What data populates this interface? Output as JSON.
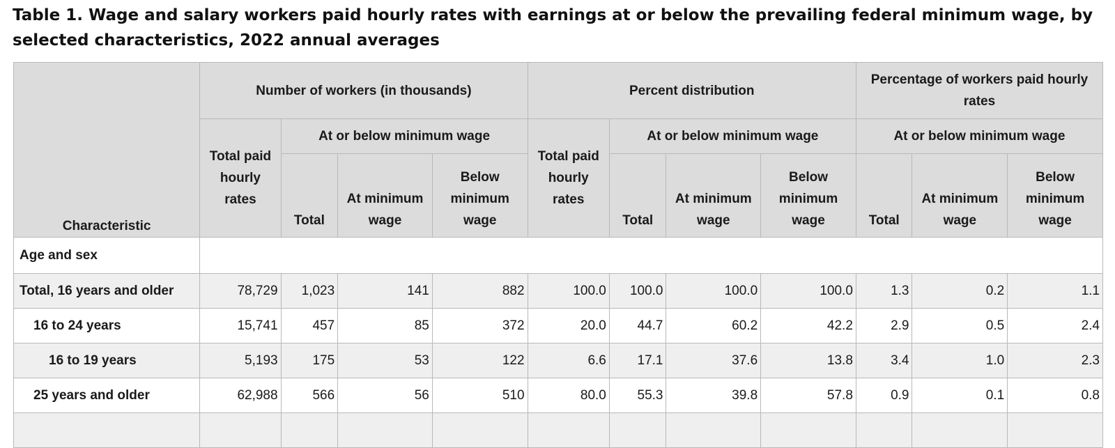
{
  "title": "Table 1. Wage and salary workers paid hourly rates with earnings at or below the prevailing federal minimum wage, by selected characteristics, 2022 annual averages",
  "headers": {
    "characteristic": "Characteristic",
    "group_number": "Number of workers (in thousands)",
    "group_percent": "Percent distribution",
    "group_percentage": "Percentage of workers paid hourly rates",
    "at_or_below_1": "At or below minimum wage",
    "at_or_below_2": "At or below minimum wage",
    "at_or_below_3": "At or below minimum wage",
    "total_paid_1": "Total paid hourly rates",
    "total_paid_2": "Total paid hourly rates",
    "cols": [
      "Total",
      "At minimum wage",
      "Below minimum wage",
      "Total",
      "At minimum wage",
      "Below minimum wage",
      "Total",
      "At minimum wage",
      "Below minimum wage"
    ]
  },
  "section": "Age and sex",
  "rows": [
    {
      "label": "Total, 16 years and older",
      "values": [
        "78,729",
        "1,023",
        "141",
        "882",
        "100.0",
        "100.0",
        "100.0",
        "100.0",
        "1.3",
        "0.2",
        "1.1"
      ]
    },
    {
      "label": "16 to 24 years",
      "values": [
        "15,741",
        "457",
        "85",
        "372",
        "20.0",
        "44.7",
        "60.2",
        "42.2",
        "2.9",
        "0.5",
        "2.4"
      ]
    },
    {
      "label": "16 to 19 years",
      "values": [
        "5,193",
        "175",
        "53",
        "122",
        "6.6",
        "17.1",
        "37.6",
        "13.8",
        "3.4",
        "1.0",
        "2.3"
      ]
    },
    {
      "label": "25 years and older",
      "values": [
        "62,988",
        "566",
        "56",
        "510",
        "80.0",
        "55.3",
        "39.8",
        "57.8",
        "0.9",
        "0.1",
        "0.8"
      ]
    }
  ]
}
